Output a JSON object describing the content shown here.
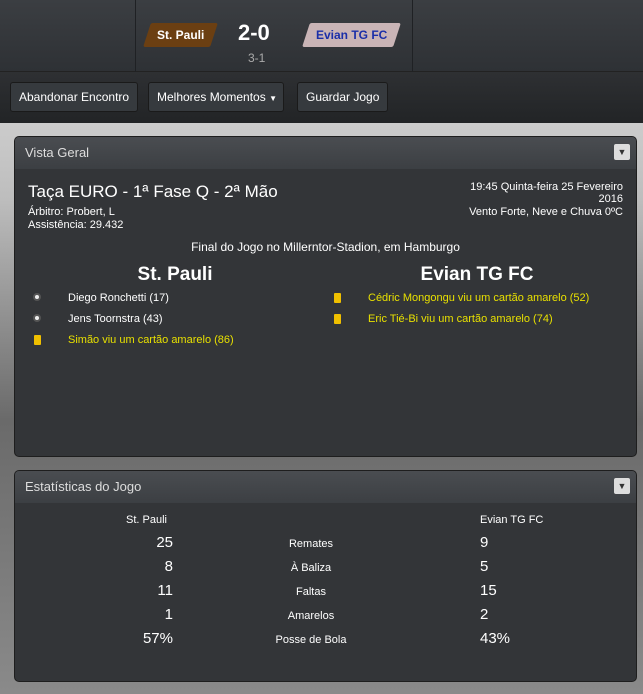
{
  "header": {
    "home": "St. Pauli",
    "away": "Evian TG FC",
    "score": "2-0",
    "aggregate": "3-1",
    "home_color": "#6b3f12",
    "away_color": "#c9b4b6"
  },
  "toolbar": {
    "abandon": "Abandonar Encontro",
    "highlights": "Melhores Momentos",
    "save": "Guardar Jogo"
  },
  "overview": {
    "title": "Vista Geral",
    "competition": "Taça EURO - 1ª Fase Q - 2ª Mão",
    "referee": "Árbitro: Probert, L",
    "attendance": "Assistência: 29.432",
    "datetime": "19:45 Quinta-feira 25 Fevereiro",
    "year": "2016",
    "weather": "Vento Forte, Neve e Chuva 0ºC",
    "venue": "Final do Jogo no Millerntor-Stadion, em Hamburgo",
    "home": "St. Pauli",
    "away": "Evian TG FC",
    "home_events": [
      {
        "type": "goal",
        "text": "Diego Ronchetti (17)"
      },
      {
        "type": "goal",
        "text": "Jens Toornstra (43)"
      },
      {
        "type": "yellow",
        "text": "Simão viu um cartão amarelo (86)"
      }
    ],
    "away_events": [
      {
        "type": "yellow",
        "text": "Cédric Mongongu viu um cartão amarelo (52)"
      },
      {
        "type": "yellow",
        "text": "Eric Tié-Bi viu um cartão amarelo (74)"
      }
    ]
  },
  "stats": {
    "title": "Estatísticas do Jogo",
    "home": "St. Pauli",
    "away": "Evian TG FC",
    "rows": [
      {
        "label": "Remates",
        "home": "25",
        "away": "9"
      },
      {
        "label": "À Baliza",
        "home": "8",
        "away": "5"
      },
      {
        "label": "Faltas",
        "home": "11",
        "away": "15"
      },
      {
        "label": "Amarelos",
        "home": "1",
        "away": "2"
      },
      {
        "label": "Posse de Bola",
        "home": "57%",
        "away": "43%"
      }
    ]
  }
}
